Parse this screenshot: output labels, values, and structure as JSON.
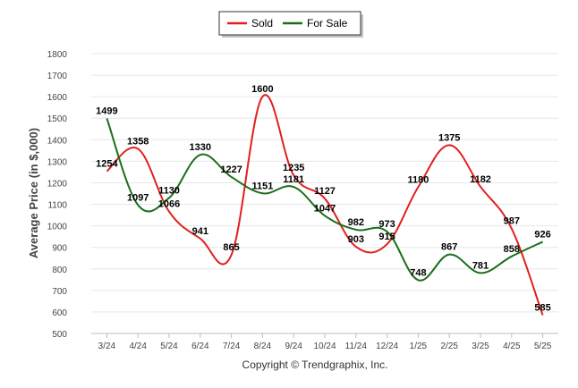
{
  "chart_data": {
    "type": "line",
    "ylabel": "Average Price (in $,000)",
    "footer": "Copyright © Trendgraphix, Inc.",
    "categories": [
      "3/24",
      "4/24",
      "5/24",
      "6/24",
      "7/24",
      "8/24",
      "9/24",
      "10/24",
      "11/24",
      "12/24",
      "1/25",
      "2/25",
      "3/25",
      "4/25",
      "5/25"
    ],
    "ylim": [
      500,
      1800
    ],
    "yticks": [
      500,
      600,
      700,
      800,
      900,
      1000,
      1100,
      1200,
      1300,
      1400,
      1500,
      1600,
      1700,
      1800
    ],
    "grid": true,
    "legend_position": "top-center",
    "series": [
      {
        "name": "Sold",
        "color": "#e02020",
        "values": [
          1254,
          1358,
          1066,
          941,
          865,
          1600,
          1235,
          1127,
          903,
          915,
          1180,
          1375,
          1182,
          987,
          585
        ]
      },
      {
        "name": "For Sale",
        "color": "#1a6e1a",
        "values": [
          1499,
          1097,
          1130,
          1330,
          1227,
          1151,
          1181,
          1047,
          982,
          973,
          748,
          867,
          781,
          858,
          926
        ]
      }
    ]
  }
}
